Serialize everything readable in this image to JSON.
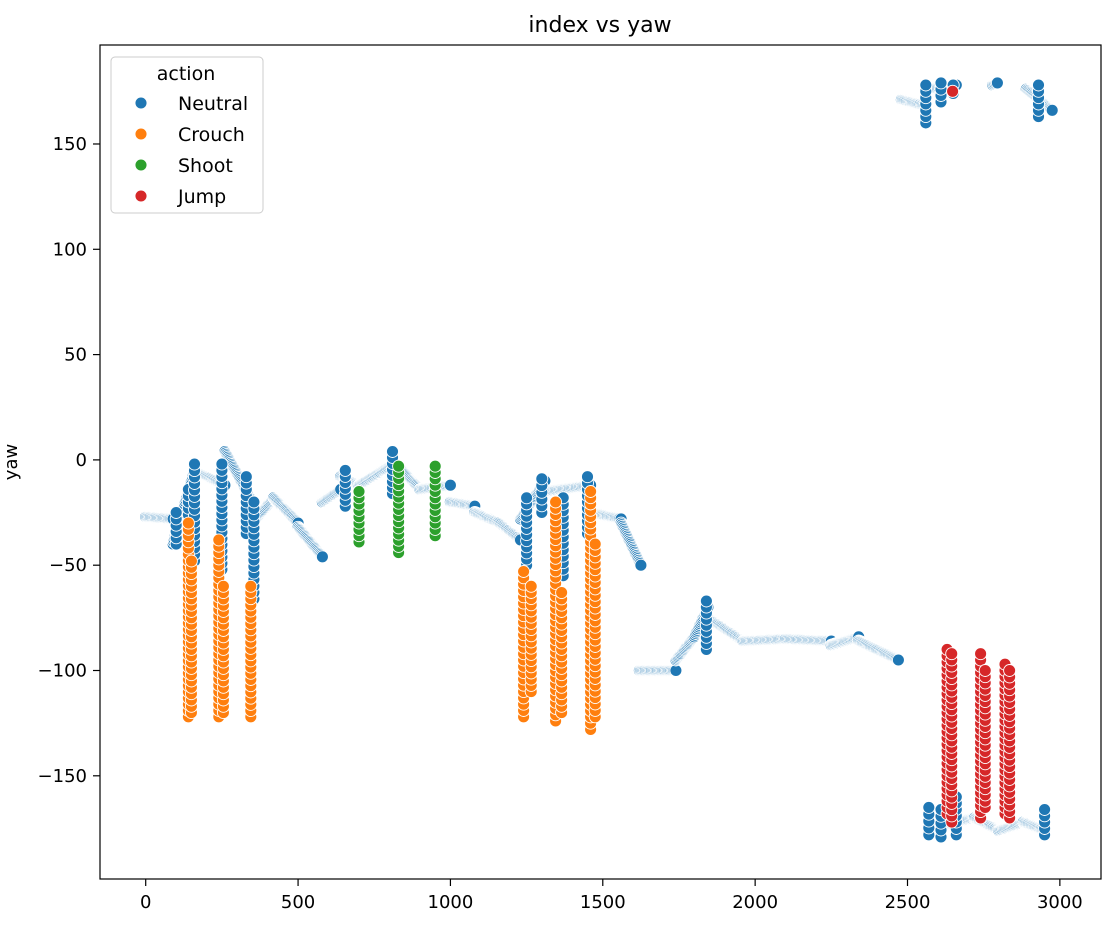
{
  "chart_data": {
    "type": "scatter",
    "title": "index vs yaw",
    "xlabel": "",
    "ylabel": "yaw",
    "xlim": [
      -150,
      3135
    ],
    "ylim": [
      -199,
      197
    ],
    "xticks": [
      0,
      500,
      1000,
      1500,
      2000,
      2500,
      3000
    ],
    "yticks": [
      -150,
      -100,
      -50,
      0,
      50,
      100,
      150
    ],
    "grid": false,
    "legend": {
      "title": "action",
      "position": "top-left"
    },
    "colors": {
      "Neutral": "#1f77b4",
      "Crouch": "#ff7f0e",
      "Shoot": "#2ca02c",
      "Jump": "#d62728"
    },
    "series": [
      {
        "name": "Neutral",
        "segments": [
          {
            "x0": 0,
            "y0": -27,
            "x1": 90,
            "y1": -28
          },
          {
            "x0": 90,
            "y0": -40,
            "x1": 110,
            "y1": -28
          },
          {
            "x0": 110,
            "y0": -30,
            "x1": 160,
            "y1": -5
          },
          {
            "x0": 160,
            "y0": -5,
            "x1": 260,
            "y1": -12
          },
          {
            "x0": 260,
            "y0": 4,
            "x1": 350,
            "y1": -20
          },
          {
            "x0": 350,
            "y0": -30,
            "x1": 420,
            "y1": -18
          },
          {
            "x0": 420,
            "y0": -18,
            "x1": 500,
            "y1": -30
          },
          {
            "x0": 500,
            "y0": -32,
            "x1": 580,
            "y1": -46
          },
          {
            "x0": 580,
            "y0": -20,
            "x1": 640,
            "y1": -14
          },
          {
            "x0": 640,
            "y0": -8,
            "x1": 700,
            "y1": -12
          },
          {
            "x0": 700,
            "y0": -12,
            "x1": 810,
            "y1": -2
          },
          {
            "x0": 810,
            "y0": 0,
            "x1": 900,
            "y1": -14
          },
          {
            "x0": 900,
            "y0": -14,
            "x1": 1000,
            "y1": -12
          },
          {
            "x0": 1000,
            "y0": -20,
            "x1": 1080,
            "y1": -22
          },
          {
            "x0": 1080,
            "y0": -25,
            "x1": 1160,
            "y1": -30
          },
          {
            "x0": 1160,
            "y0": -30,
            "x1": 1230,
            "y1": -38
          },
          {
            "x0": 1230,
            "y0": -28,
            "x1": 1310,
            "y1": -10
          },
          {
            "x0": 1310,
            "y0": -15,
            "x1": 1460,
            "y1": -12
          },
          {
            "x0": 1460,
            "y0": -25,
            "x1": 1560,
            "y1": -28
          },
          {
            "x0": 1560,
            "y0": -30,
            "x1": 1625,
            "y1": -50
          },
          {
            "x0": 1620,
            "y0": -100,
            "x1": 1740,
            "y1": -100
          },
          {
            "x0": 1740,
            "y0": -95,
            "x1": 1800,
            "y1": -84
          },
          {
            "x0": 1800,
            "y0": -84,
            "x1": 1845,
            "y1": -70
          },
          {
            "x0": 1845,
            "y0": -75,
            "x1": 1960,
            "y1": -86
          },
          {
            "x0": 1960,
            "y0": -86,
            "x1": 2100,
            "y1": -85
          },
          {
            "x0": 2100,
            "y0": -85,
            "x1": 2250,
            "y1": -86
          },
          {
            "x0": 2250,
            "y0": -88,
            "x1": 2340,
            "y1": -84
          },
          {
            "x0": 2340,
            "y0": -86,
            "x1": 2470,
            "y1": -95
          },
          {
            "x0": 2480,
            "y0": 171,
            "x1": 2560,
            "y1": 168
          },
          {
            "x0": 2560,
            "y0": 176,
            "x1": 2660,
            "y1": 178
          },
          {
            "x0": 2780,
            "y0": 178,
            "x1": 2795,
            "y1": 179
          },
          {
            "x0": 2890,
            "y0": 176,
            "x1": 2975,
            "y1": 166
          },
          {
            "x0": 2570,
            "y0": -176,
            "x1": 2650,
            "y1": -172
          },
          {
            "x0": 2650,
            "y0": -172,
            "x1": 2720,
            "y1": -170
          },
          {
            "x0": 2720,
            "y0": -170,
            "x1": 2800,
            "y1": -176
          },
          {
            "x0": 2800,
            "y0": -176,
            "x1": 2880,
            "y1": -172
          },
          {
            "x0": 2880,
            "y0": -172,
            "x1": 2950,
            "y1": -176
          }
        ],
        "bursts": [
          {
            "x": 100,
            "y0": -40,
            "y1": -25
          },
          {
            "x": 140,
            "y0": -50,
            "y1": -14
          },
          {
            "x": 160,
            "y0": -48,
            "y1": -2
          },
          {
            "x": 250,
            "y0": -52,
            "y1": -2
          },
          {
            "x": 330,
            "y0": -35,
            "y1": -8
          },
          {
            "x": 355,
            "y0": -66,
            "y1": -20
          },
          {
            "x": 655,
            "y0": -22,
            "y1": -5
          },
          {
            "x": 810,
            "y0": -16,
            "y1": 4
          },
          {
            "x": 1250,
            "y0": -50,
            "y1": -18
          },
          {
            "x": 1300,
            "y0": -25,
            "y1": -9
          },
          {
            "x": 1370,
            "y0": -55,
            "y1": -18
          },
          {
            "x": 1450,
            "y0": -35,
            "y1": -8
          },
          {
            "x": 1840,
            "y0": -90,
            "y1": -67
          },
          {
            "x": 2560,
            "y0": 160,
            "y1": 178
          },
          {
            "x": 2610,
            "y0": 170,
            "y1": 179
          },
          {
            "x": 2650,
            "y0": 174,
            "y1": 178
          },
          {
            "x": 2930,
            "y0": 163,
            "y1": 178
          },
          {
            "x": 2570,
            "y0": -178,
            "y1": -165
          },
          {
            "x": 2610,
            "y0": -179,
            "y1": -166
          },
          {
            "x": 2660,
            "y0": -178,
            "y1": -160
          },
          {
            "x": 2740,
            "y0": -168,
            "y1": -147
          },
          {
            "x": 2950,
            "y0": -178,
            "y1": -166
          }
        ]
      },
      {
        "name": "Crouch",
        "bursts": [
          {
            "x": 140,
            "y0": -122,
            "y1": -30
          },
          {
            "x": 150,
            "y0": -120,
            "y1": -48
          },
          {
            "x": 240,
            "y0": -122,
            "y1": -38
          },
          {
            "x": 255,
            "y0": -120,
            "y1": -60
          },
          {
            "x": 345,
            "y0": -122,
            "y1": -60
          },
          {
            "x": 1240,
            "y0": -122,
            "y1": -53
          },
          {
            "x": 1265,
            "y0": -110,
            "y1": -60
          },
          {
            "x": 1345,
            "y0": -124,
            "y1": -20
          },
          {
            "x": 1365,
            "y0": -120,
            "y1": -63
          },
          {
            "x": 1460,
            "y0": -128,
            "y1": -15
          },
          {
            "x": 1475,
            "y0": -122,
            "y1": -40
          }
        ]
      },
      {
        "name": "Shoot",
        "bursts": [
          {
            "x": 700,
            "y0": -39,
            "y1": -15
          },
          {
            "x": 830,
            "y0": -44,
            "y1": -3
          },
          {
            "x": 950,
            "y0": -36,
            "y1": -3
          }
        ]
      },
      {
        "name": "Jump",
        "bursts": [
          {
            "x": 2630,
            "y0": -168,
            "y1": -90
          },
          {
            "x": 2645,
            "y0": -172,
            "y1": -92
          },
          {
            "x": 2740,
            "y0": -170,
            "y1": -92
          },
          {
            "x": 2755,
            "y0": -165,
            "y1": -100
          },
          {
            "x": 2820,
            "y0": -168,
            "y1": -97
          },
          {
            "x": 2835,
            "y0": -170,
            "y1": -100
          },
          {
            "x": 2648,
            "y0": 175,
            "y1": 175
          }
        ]
      }
    ]
  }
}
